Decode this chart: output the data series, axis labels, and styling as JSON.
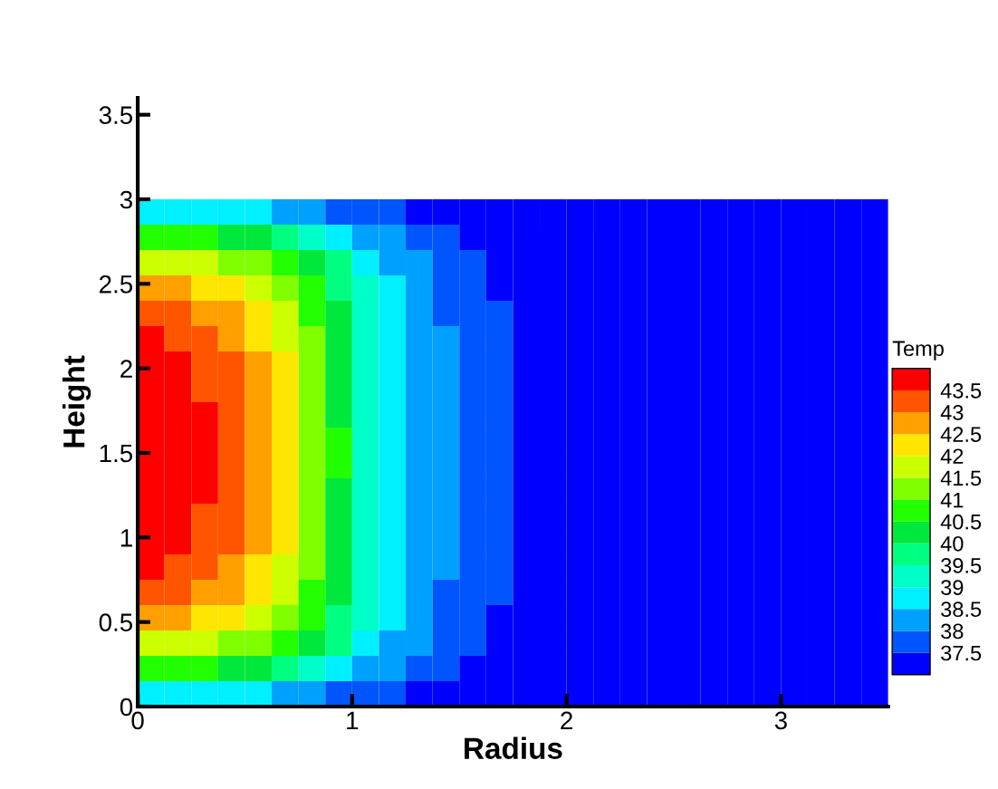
{
  "chart_data": {
    "type": "heatmap",
    "xlabel": "Radius",
    "ylabel": "Height",
    "clabel": "Temp",
    "x": [
      0.0625,
      0.1875,
      0.3125,
      0.4375,
      0.5625,
      0.6875,
      0.8125,
      0.9375,
      1.0625,
      1.1875,
      1.3125,
      1.4375,
      1.5625,
      1.6875,
      1.8125,
      1.9375,
      2.0625,
      2.1875,
      2.3125,
      2.4375,
      2.5625,
      2.6875,
      2.8125,
      2.9375,
      3.0625,
      3.1875,
      3.3125,
      3.4375
    ],
    "y": [
      2.925,
      2.775,
      2.625,
      2.475,
      2.325,
      2.175,
      2.025,
      1.875,
      1.725,
      1.575,
      1.425,
      1.275,
      1.125,
      0.975,
      0.825,
      0.675,
      0.525,
      0.375,
      0.225,
      0.075
    ],
    "xlim": [
      0,
      3.5
    ],
    "ylim": [
      0,
      3.6
    ],
    "xticks": [
      0,
      1,
      2,
      3
    ],
    "yticks": [
      0,
      0.5,
      1,
      1.5,
      2,
      2.5,
      3,
      3.5
    ],
    "clim": [
      37,
      44
    ],
    "cticks": [
      37.5,
      38,
      38.5,
      39,
      39.5,
      40,
      40.5,
      41,
      41.5,
      42,
      42.5,
      43,
      43.5
    ],
    "colors": [
      "#0000ff",
      "#0055ff",
      "#00a0ff",
      "#00f0ff",
      "#00ffc8",
      "#00ff80",
      "#00e83c",
      "#22ff00",
      "#80ff00",
      "#ccff00",
      "#ffe600",
      "#ffa000",
      "#ff5500",
      "#ff0000"
    ],
    "cells": [
      [
        38.9,
        38.8,
        38.8,
        38.7,
        38.6,
        38.4,
        38.2,
        37.9,
        37.6,
        37.5,
        37.4,
        37.3,
        37.2,
        37.1,
        37.1,
        37.1,
        37.1,
        37.1,
        37.1,
        37.1,
        37.1,
        37.1,
        37.1,
        37.1,
        37.1,
        37.1,
        37.1,
        37.1
      ],
      [
        40.8,
        40.7,
        40.6,
        40.4,
        40.2,
        39.9,
        39.4,
        38.9,
        38.3,
        38.0,
        37.8,
        37.6,
        37.4,
        37.3,
        37.2,
        37.1,
        37.1,
        37.1,
        37.1,
        37.1,
        37.1,
        37.1,
        37.1,
        37.1,
        37.1,
        37.1,
        37.1,
        37.1
      ],
      [
        41.9,
        41.8,
        41.6,
        41.4,
        41.2,
        40.7,
        40.1,
        39.5,
        38.7,
        38.3,
        38.0,
        37.7,
        37.5,
        37.4,
        37.2,
        37.1,
        37.1,
        37.1,
        37.1,
        37.1,
        37.1,
        37.1,
        37.1,
        37.1,
        37.1,
        37.1,
        37.1,
        37.1
      ],
      [
        42.7,
        42.6,
        42.4,
        42.1,
        41.8,
        41.3,
        40.6,
        39.8,
        39.0,
        38.5,
        38.2,
        37.9,
        37.6,
        37.4,
        37.3,
        37.2,
        37.2,
        37.2,
        37.2,
        37.2,
        37.2,
        37.2,
        37.2,
        37.2,
        37.2,
        37.2,
        37.2,
        37.2
      ],
      [
        43.1,
        43.0,
        42.7,
        42.5,
        42.2,
        41.6,
        40.9,
        40.0,
        39.1,
        38.6,
        38.3,
        37.9,
        37.6,
        37.5,
        37.3,
        37.2,
        37.2,
        37.2,
        37.2,
        37.2,
        37.2,
        37.2,
        37.2,
        37.2,
        37.2,
        37.2,
        37.2,
        37.2
      ],
      [
        43.5,
        43.3,
        43.1,
        42.8,
        42.4,
        41.9,
        41.1,
        40.2,
        39.2,
        38.7,
        38.3,
        38.0,
        37.7,
        37.5,
        37.3,
        37.2,
        37.2,
        37.2,
        37.2,
        37.2,
        37.2,
        37.2,
        37.2,
        37.2,
        37.2,
        37.2,
        37.2,
        37.2
      ],
      [
        43.7,
        43.5,
        43.3,
        43.0,
        42.6,
        42.0,
        41.2,
        40.3,
        39.3,
        38.8,
        38.4,
        38.0,
        37.7,
        37.5,
        37.3,
        37.2,
        37.2,
        37.2,
        37.2,
        37.2,
        37.2,
        37.2,
        37.2,
        37.2,
        37.2,
        37.2,
        37.2,
        37.2
      ],
      [
        43.8,
        43.7,
        43.4,
        43.1,
        42.7,
        42.2,
        41.3,
        40.4,
        39.4,
        38.8,
        38.4,
        38.0,
        37.7,
        37.5,
        37.3,
        37.2,
        37.2,
        37.2,
        37.2,
        37.2,
        37.2,
        37.2,
        37.2,
        37.2,
        37.2,
        37.2,
        37.2,
        37.2
      ],
      [
        43.9,
        43.7,
        43.5,
        43.1,
        42.8,
        42.2,
        41.4,
        40.4,
        39.4,
        38.8,
        38.4,
        38.0,
        37.7,
        37.5,
        37.3,
        37.2,
        37.2,
        37.2,
        37.2,
        37.2,
        37.2,
        37.2,
        37.2,
        37.2,
        37.2,
        37.2,
        37.2,
        37.2
      ],
      [
        44.0,
        43.8,
        43.5,
        43.2,
        42.9,
        42.3,
        41.4,
        40.5,
        39.4,
        38.9,
        38.4,
        38.0,
        37.7,
        37.5,
        37.3,
        37.2,
        37.2,
        37.2,
        37.2,
        37.2,
        37.2,
        37.2,
        37.2,
        37.2,
        37.2,
        37.2,
        37.2,
        37.2
      ],
      [
        44.0,
        43.8,
        43.5,
        43.2,
        42.9,
        42.3,
        41.4,
        40.5,
        39.4,
        38.9,
        38.4,
        38.0,
        37.7,
        37.5,
        37.3,
        37.2,
        37.2,
        37.2,
        37.2,
        37.2,
        37.2,
        37.2,
        37.2,
        37.2,
        37.2,
        37.2,
        37.2,
        37.2
      ],
      [
        43.9,
        43.7,
        43.5,
        43.1,
        42.8,
        42.2,
        41.4,
        40.4,
        39.4,
        38.8,
        38.4,
        38.0,
        37.7,
        37.5,
        37.3,
        37.2,
        37.2,
        37.2,
        37.2,
        37.2,
        37.2,
        37.2,
        37.2,
        37.2,
        37.2,
        37.2,
        37.2,
        37.2
      ],
      [
        43.8,
        43.7,
        43.4,
        43.1,
        42.7,
        42.2,
        41.3,
        40.4,
        39.4,
        38.8,
        38.4,
        38.0,
        37.7,
        37.5,
        37.3,
        37.2,
        37.2,
        37.2,
        37.2,
        37.2,
        37.2,
        37.2,
        37.2,
        37.2,
        37.2,
        37.2,
        37.2,
        37.2
      ],
      [
        43.7,
        43.5,
        43.3,
        43.0,
        42.6,
        42.0,
        41.2,
        40.3,
        39.3,
        38.8,
        38.4,
        38.0,
        37.7,
        37.5,
        37.3,
        37.2,
        37.2,
        37.2,
        37.2,
        37.2,
        37.2,
        37.2,
        37.2,
        37.2,
        37.2,
        37.2,
        37.2,
        37.2
      ],
      [
        43.5,
        43.3,
        43.1,
        42.8,
        42.4,
        41.9,
        41.1,
        40.2,
        39.2,
        38.7,
        38.3,
        38.0,
        37.7,
        37.5,
        37.3,
        37.2,
        37.2,
        37.2,
        37.2,
        37.2,
        37.2,
        37.2,
        37.2,
        37.2,
        37.2,
        37.2,
        37.2,
        37.2
      ],
      [
        43.1,
        43.0,
        42.7,
        42.5,
        42.2,
        41.6,
        40.9,
        40.0,
        39.1,
        38.6,
        38.3,
        37.9,
        37.6,
        37.5,
        37.3,
        37.2,
        37.2,
        37.2,
        37.2,
        37.2,
        37.2,
        37.2,
        37.2,
        37.2,
        37.2,
        37.2,
        37.2,
        37.2
      ],
      [
        42.7,
        42.6,
        42.4,
        42.1,
        41.8,
        41.3,
        40.6,
        39.8,
        39.0,
        38.5,
        38.2,
        37.9,
        37.6,
        37.4,
        37.3,
        37.2,
        37.2,
        37.2,
        37.2,
        37.2,
        37.2,
        37.2,
        37.2,
        37.2,
        37.2,
        37.2,
        37.2,
        37.2
      ],
      [
        41.9,
        41.8,
        41.6,
        41.4,
        41.2,
        40.7,
        40.1,
        39.5,
        38.7,
        38.3,
        38.0,
        37.7,
        37.5,
        37.4,
        37.2,
        37.1,
        37.1,
        37.1,
        37.1,
        37.1,
        37.1,
        37.1,
        37.1,
        37.1,
        37.1,
        37.1,
        37.1,
        37.1
      ],
      [
        40.8,
        40.7,
        40.6,
        40.4,
        40.2,
        39.9,
        39.4,
        38.9,
        38.3,
        38.0,
        37.8,
        37.6,
        37.4,
        37.3,
        37.2,
        37.1,
        37.1,
        37.1,
        37.1,
        37.1,
        37.1,
        37.1,
        37.1,
        37.1,
        37.1,
        37.1,
        37.1,
        37.1
      ],
      [
        38.9,
        38.8,
        38.8,
        38.7,
        38.6,
        38.4,
        38.2,
        37.9,
        37.6,
        37.5,
        37.4,
        37.3,
        37.2,
        37.1,
        37.1,
        37.1,
        37.1,
        37.1,
        37.1,
        37.1,
        37.1,
        37.1,
        37.1,
        37.1,
        37.1,
        37.1,
        37.1,
        37.1
      ]
    ]
  }
}
